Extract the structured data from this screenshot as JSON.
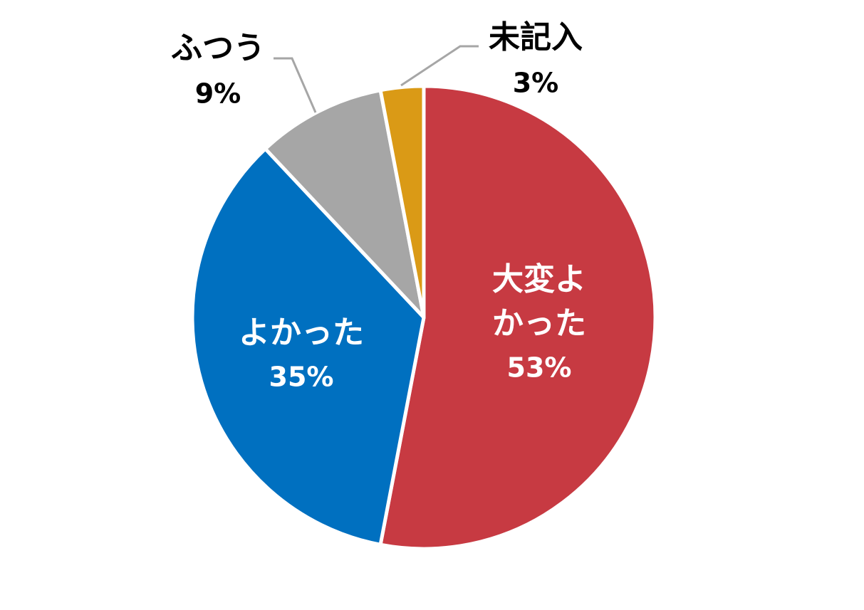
{
  "chart_data": {
    "type": "pie",
    "title": "",
    "start_angle_deg": 0,
    "direction": "clockwise",
    "slices": [
      {
        "name": "大変よかった",
        "label_lines": [
          "大変よ",
          "かった"
        ],
        "percent_label": "53%",
        "value": 53,
        "color": "#C73A42",
        "label_color": "#FFFFFF",
        "label_placement": "inside"
      },
      {
        "name": "よかった",
        "label_lines": [
          "よかった"
        ],
        "percent_label": "35%",
        "value": 35,
        "color": "#0070C0",
        "label_color": "#FFFFFF",
        "label_placement": "inside"
      },
      {
        "name": "ふつう",
        "label_lines": [
          "ふつう"
        ],
        "percent_label": "9%",
        "value": 9,
        "color": "#A6A6A6",
        "label_color": "#000000",
        "label_placement": "outside"
      },
      {
        "name": "未記入",
        "label_lines": [
          "未記入"
        ],
        "percent_label": "3%",
        "value": 3,
        "color": "#DA9A16",
        "label_color": "#000000",
        "label_placement": "outside"
      }
    ],
    "legend": "none",
    "border_color": "#FFFFFF",
    "leader_line_color": "#A6A6A6"
  }
}
